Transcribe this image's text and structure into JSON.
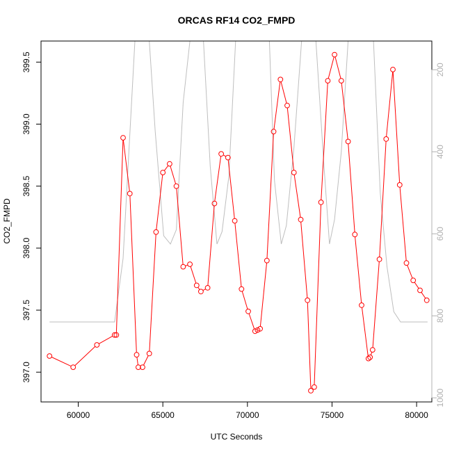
{
  "chart_data": {
    "type": "line",
    "title": "ORCAS RF14 CO2_FMPD",
    "xlabel": "UTC Seconds",
    "ylabel": "CO2_FMPD",
    "xlim": [
      57800,
      80900
    ],
    "ylim": [
      396.76,
      399.67
    ],
    "x_ticks": [
      60000,
      65000,
      70000,
      75000,
      80000
    ],
    "y_ticks": [
      397.0,
      397.5,
      398.0,
      398.5,
      399.0,
      399.5
    ],
    "y_tick_labels": [
      "397.0",
      "397.5",
      "398.0",
      "398.5",
      "399.0",
      "399.5"
    ],
    "y2_ticks": [
      200,
      400,
      600,
      800,
      1000
    ],
    "y2lim": [
      1010,
      130
    ],
    "y2_inverted": true,
    "series": [
      {
        "color": "#ff0000",
        "marker": "circle",
        "x": [
          58300,
          59700,
          61100,
          62150,
          62250,
          62650,
          63050,
          63450,
          63550,
          63800,
          64200,
          64600,
          65000,
          65400,
          65800,
          66200,
          66600,
          67000,
          67250,
          67650,
          68050,
          68450,
          68850,
          69250,
          69650,
          70050,
          70450,
          70600,
          70750,
          71150,
          71550,
          71950,
          72350,
          72750,
          73150,
          73550,
          73750,
          73950,
          74350,
          74750,
          75150,
          75550,
          75950,
          76350,
          76750,
          77150,
          77250,
          77400,
          77800,
          78200,
          78600,
          79000,
          79400,
          79800,
          80200,
          80600
        ],
        "values": [
          397.13,
          397.04,
          397.22,
          397.3,
          397.3,
          398.89,
          398.44,
          397.14,
          397.04,
          397.04,
          397.15,
          398.13,
          398.61,
          398.68,
          398.5,
          397.85,
          397.87,
          397.7,
          397.65,
          397.68,
          398.36,
          398.76,
          398.73,
          398.22,
          397.67,
          397.49,
          397.33,
          397.34,
          397.35,
          397.9,
          398.94,
          399.36,
          399.15,
          398.61,
          398.23,
          397.58,
          396.85,
          396.88,
          398.37,
          399.35,
          399.56,
          399.35,
          398.86,
          398.11,
          397.54,
          397.11,
          397.12,
          397.18,
          397.91,
          398.88,
          399.44,
          398.51,
          397.88,
          397.74,
          397.66,
          397.58
        ]
      },
      {
        "color": "#bebebe",
        "axis": "right",
        "x": [
          58300,
          62150,
          62650,
          63350,
          63800,
          64200,
          64550,
          65050,
          65450,
          65800,
          66200,
          66600,
          67000,
          67400,
          67800,
          68200,
          68500,
          68900,
          69300,
          69700,
          70050,
          70300,
          70800,
          71300,
          71600,
          72000,
          72300,
          72750,
          73200,
          73650,
          74050,
          74500,
          74850,
          75150,
          75550,
          75950,
          76350,
          76750,
          77050,
          77450,
          77850,
          78250,
          78650,
          79050,
          79450,
          80650
        ],
        "values": [
          815,
          815,
          660,
          130,
          130,
          130,
          350,
          605,
          625,
          590,
          280,
          130,
          130,
          130,
          435,
          625,
          595,
          460,
          130,
          130,
          130,
          130,
          130,
          130,
          470,
          625,
          580,
          390,
          130,
          130,
          130,
          420,
          625,
          565,
          400,
          130,
          130,
          130,
          130,
          130,
          500,
          680,
          790,
          815,
          815,
          815
        ]
      }
    ]
  }
}
